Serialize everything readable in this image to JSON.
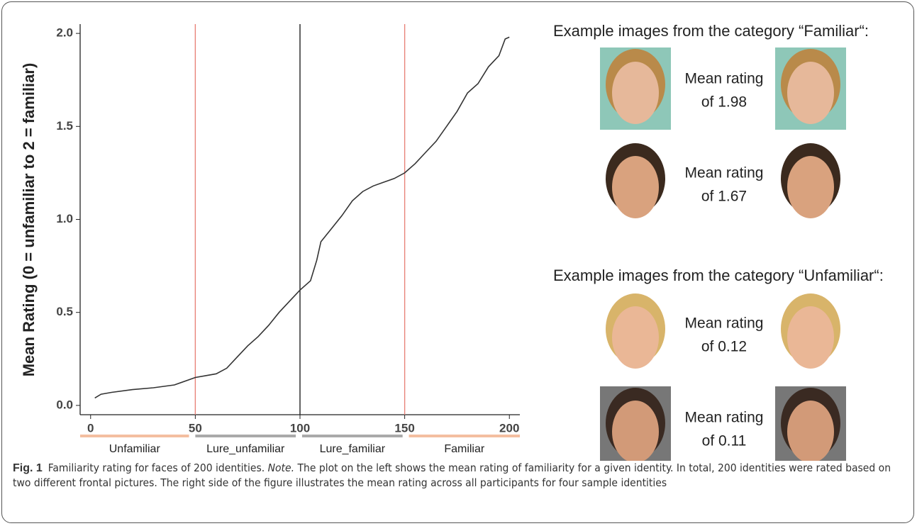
{
  "chart_data": {
    "type": "line",
    "y_label": "Mean Rating (0 = unfamiliar to 2 = familiar)",
    "x": [
      2,
      5,
      10,
      20,
      30,
      40,
      50,
      55,
      60,
      65,
      70,
      75,
      80,
      85,
      90,
      95,
      100,
      105,
      108,
      110,
      115,
      120,
      125,
      130,
      135,
      140,
      145,
      150,
      155,
      160,
      165,
      170,
      175,
      180,
      185,
      190,
      195,
      198,
      200
    ],
    "values": [
      0.04,
      0.06,
      0.07,
      0.085,
      0.095,
      0.11,
      0.15,
      0.16,
      0.17,
      0.2,
      0.26,
      0.32,
      0.37,
      0.43,
      0.5,
      0.56,
      0.62,
      0.67,
      0.78,
      0.88,
      0.95,
      1.02,
      1.1,
      1.15,
      1.18,
      1.2,
      1.22,
      1.25,
      1.3,
      1.36,
      1.42,
      1.5,
      1.58,
      1.68,
      1.73,
      1.82,
      1.88,
      1.97,
      1.98
    ],
    "color": "#333333",
    "xlim": [
      -5,
      205
    ],
    "ylim": [
      -0.05,
      2.05
    ],
    "xticks": [
      0,
      50,
      100,
      150,
      200
    ],
    "yticks": [
      {
        "value": 0,
        "label": "0.0"
      },
      0.5,
      {
        "value": 1,
        "label": "1.0"
      },
      1.5,
      {
        "value": 2,
        "label": "2.0"
      }
    ],
    "vlines": [
      {
        "value": 50,
        "color": "#e8837a"
      },
      {
        "value": 100,
        "color": "#222222"
      },
      {
        "value": 150,
        "color": "#e8837a"
      }
    ],
    "segments": [
      {
        "label": "Unfamiliar",
        "start": -5,
        "end": 47,
        "color": "#f4bea0"
      },
      {
        "label": "Lure_unfamiliar",
        "start": 50,
        "end": 98,
        "color": "#a9a9a9"
      },
      {
        "label": "Lure_familiar",
        "start": 101,
        "end": 149,
        "color": "#a9a9a9"
      },
      {
        "label": "Familiar",
        "start": 152,
        "end": 205,
        "color": "#f4bea0"
      }
    ]
  },
  "examples": [
    {
      "heading": "Example images from the category “Familiar“:",
      "items": [
        {
          "line1": "Mean rating",
          "line2": "of 1.98"
        },
        {
          "line1": "Mean rating",
          "line2": "of 1.67"
        }
      ]
    },
    {
      "heading": "Example images from the category “Unfamiliar“:",
      "items": [
        {
          "line1": "Mean rating",
          "line2": "of 0.12"
        },
        {
          "line1": "Mean rating",
          "line2": "of 0.11"
        }
      ]
    }
  ],
  "caption": {
    "label": "Fig. 1",
    "lead": "Familiarity rating for faces of 200 identities.",
    "note_label": "Note.",
    "body": "The plot on the left shows the mean rating of familiarity for a given identity. In total, 200 identities were rated based on two different frontal pictures. The right side of the figure illustrates the mean rating across all participants for four sample identities"
  }
}
